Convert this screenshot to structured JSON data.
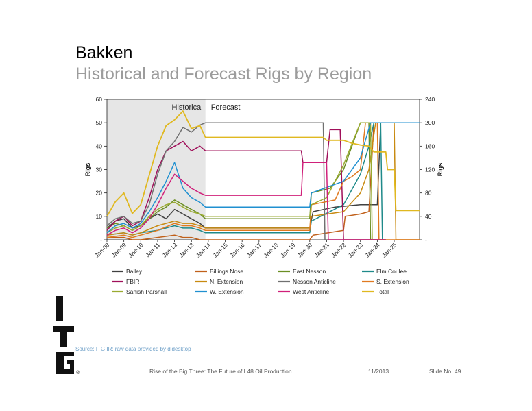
{
  "slide": {
    "title": "Bakken",
    "subtitle": "Historical and Forecast Rigs by Region",
    "source": "Source: ITG IR; raw data provided by didesktop",
    "footer_title": "Rise of the Big Three: The Future of L48 Oil Production",
    "footer_date": "11/2013",
    "footer_slide": "Slide No. 49",
    "logo_text": "ITG"
  },
  "chart_data": {
    "type": "line",
    "title": "",
    "ylabel": "Rigs",
    "y2label": "Rigs",
    "ylim": [
      0,
      60
    ],
    "yticks": [
      "-",
      "10",
      "20",
      "30",
      "40",
      "50",
      "60"
    ],
    "y2lim": [
      0,
      240
    ],
    "y2ticks": [
      "-",
      "40",
      "80",
      "120",
      "160",
      "200",
      "240"
    ],
    "xlim": [
      2008,
      2026.5
    ],
    "xticks": [
      "Jan-08",
      "Jan-09",
      "Jan-10",
      "Jan-11",
      "Jan-12",
      "Jan-13",
      "Jan-14",
      "Jan-15",
      "Jan-16",
      "Jan-17",
      "Jan-18",
      "Jan-19",
      "Jan-20",
      "Jan-21",
      "Jan-22",
      "Jan-23",
      "Jan-24",
      "Jan-25"
    ],
    "region_labels": {
      "historical": "Historical",
      "forecast": "Forecast"
    },
    "historical_end": 2013.83,
    "legend_position": "bottom",
    "series": [
      {
        "name": "Bailey",
        "color": "#404040",
        "axis": "left",
        "points": [
          [
            2008,
            5
          ],
          [
            2008.5,
            8
          ],
          [
            2009,
            9
          ],
          [
            2009.5,
            5
          ],
          [
            2010,
            6
          ],
          [
            2010.5,
            9
          ],
          [
            2011,
            11
          ],
          [
            2011.5,
            9
          ],
          [
            2012,
            13
          ],
          [
            2012.5,
            11
          ],
          [
            2013,
            9
          ],
          [
            2013.5,
            7
          ],
          [
            2013.83,
            5
          ],
          [
            2013.9,
            5
          ],
          [
            2020,
            5
          ],
          [
            2020.2,
            12
          ],
          [
            2021.5,
            14
          ],
          [
            2023,
            15
          ],
          [
            2024,
            15
          ],
          [
            2024.2,
            50
          ],
          [
            2026.5,
            50
          ]
        ]
      },
      {
        "name": "Billings Nose",
        "color": "#c0601a",
        "axis": "left",
        "points": [
          [
            2008,
            1
          ],
          [
            2009,
            1
          ],
          [
            2009.5,
            0
          ],
          [
            2010,
            0
          ],
          [
            2011,
            1
          ],
          [
            2012,
            2
          ],
          [
            2012.5,
            1
          ],
          [
            2013,
            1
          ],
          [
            2013.5,
            0
          ],
          [
            2013.83,
            0
          ],
          [
            2020,
            0
          ],
          [
            2020.2,
            2
          ],
          [
            2022,
            4
          ],
          [
            2022.1,
            10
          ],
          [
            2023,
            11
          ],
          [
            2023.5,
            12
          ],
          [
            2023.8,
            50
          ],
          [
            2026.5,
            50
          ]
        ]
      },
      {
        "name": "East Nesson",
        "color": "#6b8e23",
        "axis": "left",
        "points": [
          [
            2008,
            5
          ],
          [
            2008.5,
            7
          ],
          [
            2009,
            6
          ],
          [
            2009.5,
            4
          ],
          [
            2010,
            6
          ],
          [
            2010.5,
            9
          ],
          [
            2011,
            12
          ],
          [
            2011.5,
            14
          ],
          [
            2012,
            17
          ],
          [
            2012.5,
            15
          ],
          [
            2013,
            13
          ],
          [
            2013.5,
            11
          ],
          [
            2013.83,
            9
          ],
          [
            2020,
            9
          ],
          [
            2020.1,
            20
          ],
          [
            2021.2,
            22
          ],
          [
            2022,
            30
          ],
          [
            2022.5,
            40
          ],
          [
            2023,
            50
          ],
          [
            2023.5,
            50
          ],
          [
            2023.6,
            0
          ],
          [
            2024.5,
            0
          ]
        ]
      },
      {
        "name": "Elm Coulee",
        "color": "#1f8a8a",
        "axis": "left",
        "points": [
          [
            2008,
            2
          ],
          [
            2009,
            3
          ],
          [
            2009.5,
            2
          ],
          [
            2010,
            3
          ],
          [
            2011,
            4
          ],
          [
            2012,
            6
          ],
          [
            2012.5,
            5
          ],
          [
            2013,
            5
          ],
          [
            2013.5,
            4
          ],
          [
            2013.83,
            3
          ],
          [
            2020,
            3
          ],
          [
            2020.1,
            8
          ],
          [
            2022,
            15
          ],
          [
            2023,
            28
          ],
          [
            2023.5,
            40
          ],
          [
            2023.8,
            50
          ],
          [
            2024.2,
            50
          ],
          [
            2024.3,
            0
          ],
          [
            2024.5,
            0
          ]
        ]
      },
      {
        "name": "FBIR",
        "color": "#a0105a",
        "axis": "left",
        "points": [
          [
            2008,
            4
          ],
          [
            2008.5,
            8
          ],
          [
            2009,
            10
          ],
          [
            2009.5,
            6
          ],
          [
            2010,
            8
          ],
          [
            2010.5,
            18
          ],
          [
            2011,
            30
          ],
          [
            2011.5,
            38
          ],
          [
            2012,
            40
          ],
          [
            2012.5,
            42
          ],
          [
            2013,
            38
          ],
          [
            2013.5,
            40
          ],
          [
            2013.83,
            38
          ],
          [
            2019.5,
            38
          ],
          [
            2019.6,
            33
          ],
          [
            2021,
            33
          ],
          [
            2021.2,
            47
          ],
          [
            2021.8,
            47
          ],
          [
            2022,
            0
          ],
          [
            2024.5,
            0
          ]
        ]
      },
      {
        "name": "N. Extension",
        "color": "#c88a10",
        "axis": "left",
        "points": [
          [
            2008,
            2
          ],
          [
            2009,
            3
          ],
          [
            2009.5,
            2
          ],
          [
            2010,
            3
          ],
          [
            2011,
            6
          ],
          [
            2012,
            8
          ],
          [
            2012.5,
            7
          ],
          [
            2013,
            7
          ],
          [
            2013.5,
            6
          ],
          [
            2013.83,
            5
          ],
          [
            2020,
            5
          ],
          [
            2020.1,
            10
          ],
          [
            2022,
            12
          ],
          [
            2022.5,
            16
          ],
          [
            2023,
            20
          ],
          [
            2023.5,
            30
          ],
          [
            2023.9,
            50
          ],
          [
            2025,
            50
          ],
          [
            2025.1,
            0
          ],
          [
            2026.5,
            0
          ]
        ]
      },
      {
        "name": "Nesson Anticline",
        "color": "#707070",
        "axis": "left",
        "points": [
          [
            2008,
            6
          ],
          [
            2008.5,
            9
          ],
          [
            2009,
            10
          ],
          [
            2009.5,
            7
          ],
          [
            2010,
            8
          ],
          [
            2010.5,
            15
          ],
          [
            2011,
            28
          ],
          [
            2011.5,
            38
          ],
          [
            2012,
            42
          ],
          [
            2012.5,
            48
          ],
          [
            2013,
            46
          ],
          [
            2013.5,
            49
          ],
          [
            2013.83,
            50
          ],
          [
            2020.8,
            50
          ],
          [
            2020.9,
            0
          ],
          [
            2024.5,
            0
          ]
        ]
      },
      {
        "name": "S. Extension",
        "color": "#e07a20",
        "axis": "left",
        "points": [
          [
            2008,
            1
          ],
          [
            2009,
            2
          ],
          [
            2009.5,
            1
          ],
          [
            2010,
            2
          ],
          [
            2011,
            4
          ],
          [
            2012,
            7
          ],
          [
            2012.5,
            6
          ],
          [
            2013,
            6
          ],
          [
            2013.5,
            5
          ],
          [
            2013.83,
            4
          ],
          [
            2020,
            4
          ],
          [
            2020.1,
            15
          ],
          [
            2021.5,
            17
          ],
          [
            2022,
            25
          ],
          [
            2022.5,
            27
          ],
          [
            2023,
            30
          ],
          [
            2023.3,
            50
          ],
          [
            2024,
            50
          ],
          [
            2024.1,
            0
          ],
          [
            2026.5,
            0
          ]
        ]
      },
      {
        "name": "Sanish Parshall",
        "color": "#9aaa30",
        "axis": "left",
        "points": [
          [
            2008,
            3
          ],
          [
            2008.5,
            5
          ],
          [
            2009,
            6
          ],
          [
            2009.5,
            4
          ],
          [
            2010,
            6
          ],
          [
            2010.5,
            10
          ],
          [
            2011,
            13
          ],
          [
            2011.5,
            15
          ],
          [
            2012,
            16
          ],
          [
            2012.5,
            14
          ],
          [
            2013,
            12
          ],
          [
            2013.5,
            11
          ],
          [
            2013.83,
            10
          ],
          [
            2020,
            10
          ],
          [
            2020.1,
            15
          ],
          [
            2021,
            18
          ],
          [
            2022,
            32
          ],
          [
            2023,
            50
          ],
          [
            2023.6,
            50
          ],
          [
            2023.7,
            0
          ],
          [
            2024.5,
            0
          ]
        ]
      },
      {
        "name": "W. Extension",
        "color": "#2090d0",
        "axis": "left",
        "points": [
          [
            2008,
            3
          ],
          [
            2008.5,
            6
          ],
          [
            2009,
            7
          ],
          [
            2009.5,
            5
          ],
          [
            2010,
            7
          ],
          [
            2010.5,
            12
          ],
          [
            2011,
            18
          ],
          [
            2011.5,
            25
          ],
          [
            2012,
            33
          ],
          [
            2012.5,
            22
          ],
          [
            2013,
            18
          ],
          [
            2013.5,
            16
          ],
          [
            2013.83,
            14
          ],
          [
            2020,
            14
          ],
          [
            2020.1,
            20
          ],
          [
            2022,
            25
          ],
          [
            2023,
            35
          ],
          [
            2023.6,
            50
          ],
          [
            2026.5,
            50
          ]
        ]
      },
      {
        "name": "West Anticline",
        "color": "#d0207a",
        "axis": "left",
        "points": [
          [
            2008,
            2
          ],
          [
            2008.5,
            4
          ],
          [
            2009,
            5
          ],
          [
            2009.5,
            3
          ],
          [
            2010,
            5
          ],
          [
            2010.5,
            9
          ],
          [
            2011,
            15
          ],
          [
            2011.5,
            22
          ],
          [
            2012,
            28
          ],
          [
            2012.5,
            25
          ],
          [
            2013,
            22
          ],
          [
            2013.5,
            20
          ],
          [
            2013.83,
            19
          ],
          [
            2019.5,
            19
          ],
          [
            2019.6,
            33
          ],
          [
            2021,
            33
          ],
          [
            2021.1,
            0
          ],
          [
            2024.5,
            0
          ]
        ]
      },
      {
        "name": "Total",
        "color": "#e0b820",
        "axis": "right",
        "points": [
          [
            2008,
            40
          ],
          [
            2008.5,
            65
          ],
          [
            2009,
            80
          ],
          [
            2009.5,
            45
          ],
          [
            2010,
            60
          ],
          [
            2010.5,
            110
          ],
          [
            2011,
            160
          ],
          [
            2011.5,
            195
          ],
          [
            2012,
            205
          ],
          [
            2012.5,
            220
          ],
          [
            2013,
            190
          ],
          [
            2013.5,
            195
          ],
          [
            2013.83,
            175
          ],
          [
            2020.8,
            175
          ],
          [
            2021,
            170
          ],
          [
            2022,
            170
          ],
          [
            2022.5,
            165
          ],
          [
            2023,
            162
          ],
          [
            2023.5,
            160
          ],
          [
            2023.8,
            150
          ],
          [
            2024.5,
            150
          ],
          [
            2024.6,
            120
          ],
          [
            2025,
            120
          ],
          [
            2025.1,
            50
          ],
          [
            2026.5,
            50
          ]
        ]
      }
    ]
  }
}
